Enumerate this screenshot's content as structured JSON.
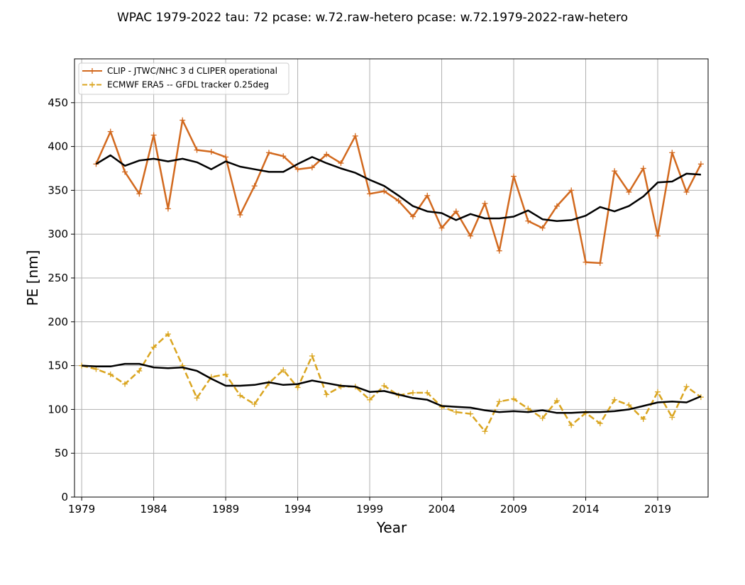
{
  "chart_data": {
    "type": "line",
    "title": "WPAC 1979-2022 tau: 72 pcase: w.72.raw-hetero pcase: w.72.1979-2022-raw-hetero",
    "xlabel": "Year",
    "ylabel": "PE [nm]",
    "xlim": [
      1978.5,
      2022.5
    ],
    "ylim": [
      0,
      500
    ],
    "x_ticks": [
      1979,
      1984,
      1989,
      1994,
      1999,
      2004,
      2009,
      2014,
      2019
    ],
    "y_ticks": [
      0,
      50,
      100,
      150,
      200,
      250,
      300,
      350,
      400,
      450
    ],
    "grid": true,
    "legend_position": "upper-left",
    "series": [
      {
        "name": "CLIP - JTWC/NHC 3 d CLIPER operational",
        "color": "#d2691e",
        "style": "solid",
        "marker": "plus",
        "x": [
          1980,
          1981,
          1982,
          1983,
          1984,
          1985,
          1986,
          1987,
          1988,
          1989,
          1990,
          1991,
          1992,
          1993,
          1994,
          1995,
          1996,
          1997,
          1998,
          1999,
          2000,
          2001,
          2002,
          2003,
          2004,
          2005,
          2006,
          2007,
          2008,
          2009,
          2010,
          2011,
          2012,
          2013,
          2014,
          2015,
          2016,
          2017,
          2018,
          2019,
          2020,
          2021,
          2022
        ],
        "values": [
          380,
          417,
          371,
          346,
          413,
          329,
          430,
          396,
          394,
          388,
          322,
          355,
          393,
          389,
          374,
          376,
          391,
          381,
          412,
          346,
          349,
          338,
          320,
          344,
          307,
          326,
          298,
          335,
          281,
          366,
          315,
          307,
          332,
          350,
          268,
          267,
          372,
          348,
          375,
          298,
          393,
          348,
          380
        ]
      },
      {
        "name": "",
        "color": "#000000",
        "style": "solid",
        "marker": "none",
        "x": [
          1980,
          1981,
          1982,
          1983,
          1984,
          1985,
          1986,
          1987,
          1988,
          1989,
          1990,
          1991,
          1992,
          1993,
          1994,
          1995,
          1996,
          1997,
          1998,
          1999,
          2000,
          2001,
          2002,
          2003,
          2004,
          2005,
          2006,
          2007,
          2008,
          2009,
          2010,
          2011,
          2012,
          2013,
          2014,
          2015,
          2016,
          2017,
          2018,
          2019,
          2020,
          2021,
          2022
        ],
        "values": [
          380,
          390,
          378,
          384,
          386,
          383,
          386,
          382,
          374,
          383,
          377,
          374,
          371,
          371,
          380,
          388,
          381,
          375,
          370,
          362,
          355,
          344,
          332,
          326,
          324,
          316,
          323,
          318,
          318,
          320,
          327,
          317,
          315,
          316,
          321,
          331,
          326,
          332,
          343,
          359,
          360,
          369,
          368
        ]
      },
      {
        "name": "ECMWF ERA5 -- GFDL tracker 0.25deg",
        "color": "#daa520",
        "style": "dashed",
        "marker": "plus",
        "x": [
          1979,
          1980,
          1981,
          1982,
          1983,
          1984,
          1985,
          1986,
          1987,
          1988,
          1989,
          1990,
          1991,
          1992,
          1993,
          1994,
          1995,
          1996,
          1997,
          1998,
          1999,
          2000,
          2001,
          2002,
          2003,
          2004,
          2005,
          2006,
          2007,
          2008,
          2009,
          2010,
          2011,
          2012,
          2013,
          2014,
          2015,
          2016,
          2017,
          2018,
          2019,
          2020,
          2021,
          2022
        ],
        "values": [
          150,
          146,
          140,
          129,
          144,
          171,
          186,
          150,
          113,
          137,
          140,
          116,
          106,
          130,
          145,
          125,
          161,
          117,
          126,
          126,
          111,
          127,
          116,
          119,
          119,
          103,
          97,
          95,
          75,
          109,
          112,
          101,
          90,
          110,
          82,
          96,
          84,
          111,
          105,
          89,
          120,
          91,
          126,
          114
        ]
      },
      {
        "name": "",
        "color": "#000000",
        "style": "solid",
        "marker": "none",
        "x": [
          1979,
          1980,
          1981,
          1982,
          1983,
          1984,
          1985,
          1986,
          1987,
          1988,
          1989,
          1990,
          1991,
          1992,
          1993,
          1994,
          1995,
          1996,
          1997,
          1998,
          1999,
          2000,
          2001,
          2002,
          2003,
          2004,
          2005,
          2006,
          2007,
          2008,
          2009,
          2010,
          2011,
          2012,
          2013,
          2014,
          2015,
          2016,
          2017,
          2018,
          2019,
          2020,
          2021,
          2022
        ],
        "values": [
          150,
          149,
          149,
          152,
          152,
          148,
          147,
          148,
          144,
          135,
          127,
          127,
          128,
          131,
          128,
          129,
          133,
          130,
          127,
          126,
          120,
          121,
          117,
          113,
          111,
          104,
          103,
          102,
          99,
          97,
          98,
          97,
          99,
          96,
          96,
          97,
          97,
          98,
          100,
          104,
          108,
          109,
          108,
          115
        ]
      }
    ]
  }
}
